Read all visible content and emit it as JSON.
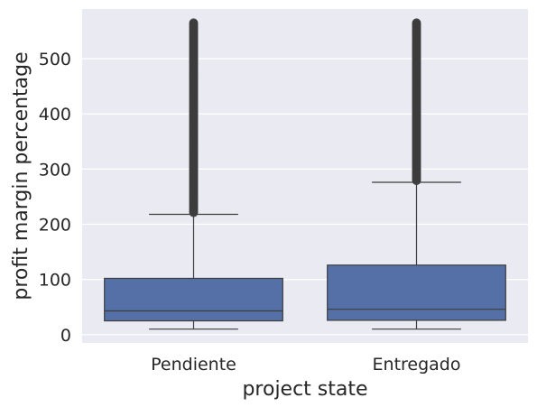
{
  "chart_data": {
    "type": "box",
    "xlabel": "project state",
    "ylabel": "profit margin percentage",
    "ylim": [
      -15,
      590
    ],
    "yticks": [
      0,
      100,
      200,
      300,
      400,
      500
    ],
    "grid": true,
    "categories": [
      "Pendiente",
      "Entregado"
    ],
    "boxes": [
      {
        "category": "Pendiente",
        "whisker_low": 10,
        "q1": 25,
        "median": 43,
        "q3": 102,
        "whisker_high": 218,
        "outliers_from": 218,
        "outliers_to": 565
      },
      {
        "category": "Entregado",
        "whisker_low": 10,
        "q1": 26,
        "median": 46,
        "q3": 126,
        "whisker_high": 276,
        "outliers_from": 276,
        "outliers_to": 565
      }
    ],
    "colors": {
      "box": "#5470a7",
      "edge": "#3d3d3d",
      "background": "#eaeaf2",
      "grid": "#ffffff"
    }
  }
}
